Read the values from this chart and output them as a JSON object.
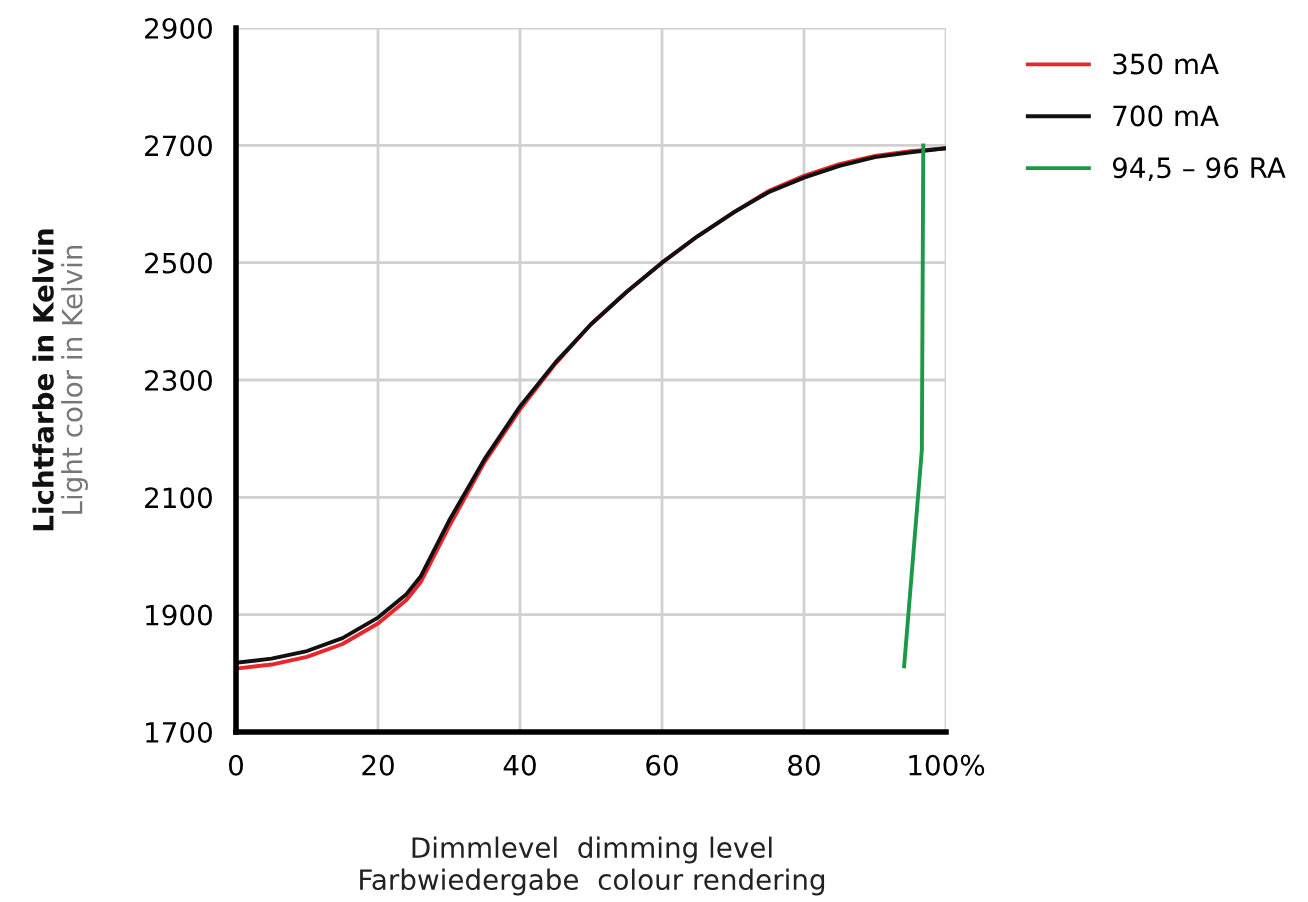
{
  "chart_data": {
    "type": "line",
    "xlabel": "Dimmlevel  dimming level\nFarbwiedergabe  colour rendering",
    "ylabel": "Lichtfarbe in Kelvin\nLight color in Kelvin",
    "x": [
      0,
      5,
      10,
      15,
      20,
      24,
      26,
      30,
      35,
      40,
      45,
      50,
      55,
      60,
      65,
      70,
      75,
      80,
      85,
      90,
      95,
      100
    ],
    "series": [
      {
        "name": "350 mA",
        "color": "#e8262b",
        "values": [
          1808,
          1815,
          1828,
          1850,
          1885,
          1925,
          1955,
          2050,
          2160,
          2250,
          2328,
          2395,
          2450,
          2500,
          2545,
          2585,
          2622,
          2648,
          2668,
          2682,
          2690,
          2695
        ]
      },
      {
        "name": "700 mA",
        "color": "#111111",
        "values": [
          1818,
          1825,
          1838,
          1860,
          1895,
          1935,
          1965,
          2060,
          2165,
          2255,
          2330,
          2395,
          2450,
          2500,
          2545,
          2585,
          2620,
          2645,
          2665,
          2680,
          2688,
          2695
        ]
      },
      {
        "name": "94,5 – 96 RA",
        "color": "#1a9a48",
        "x": [
          94.1,
          96.6,
          96.8
        ],
        "values": [
          1812,
          2181,
          2700
        ]
      }
    ],
    "xlim": [
      0,
      100
    ],
    "xticks": [
      0,
      20,
      40,
      60,
      80,
      {
        "value": 100,
        "label": "100%"
      }
    ],
    "ylim": [
      1700,
      2900
    ],
    "yticks": [
      1700,
      1900,
      2100,
      2300,
      2500,
      2700,
      2900
    ],
    "grid": true,
    "legend": "top right",
    "marker": "none",
    "line_style": "solid"
  }
}
